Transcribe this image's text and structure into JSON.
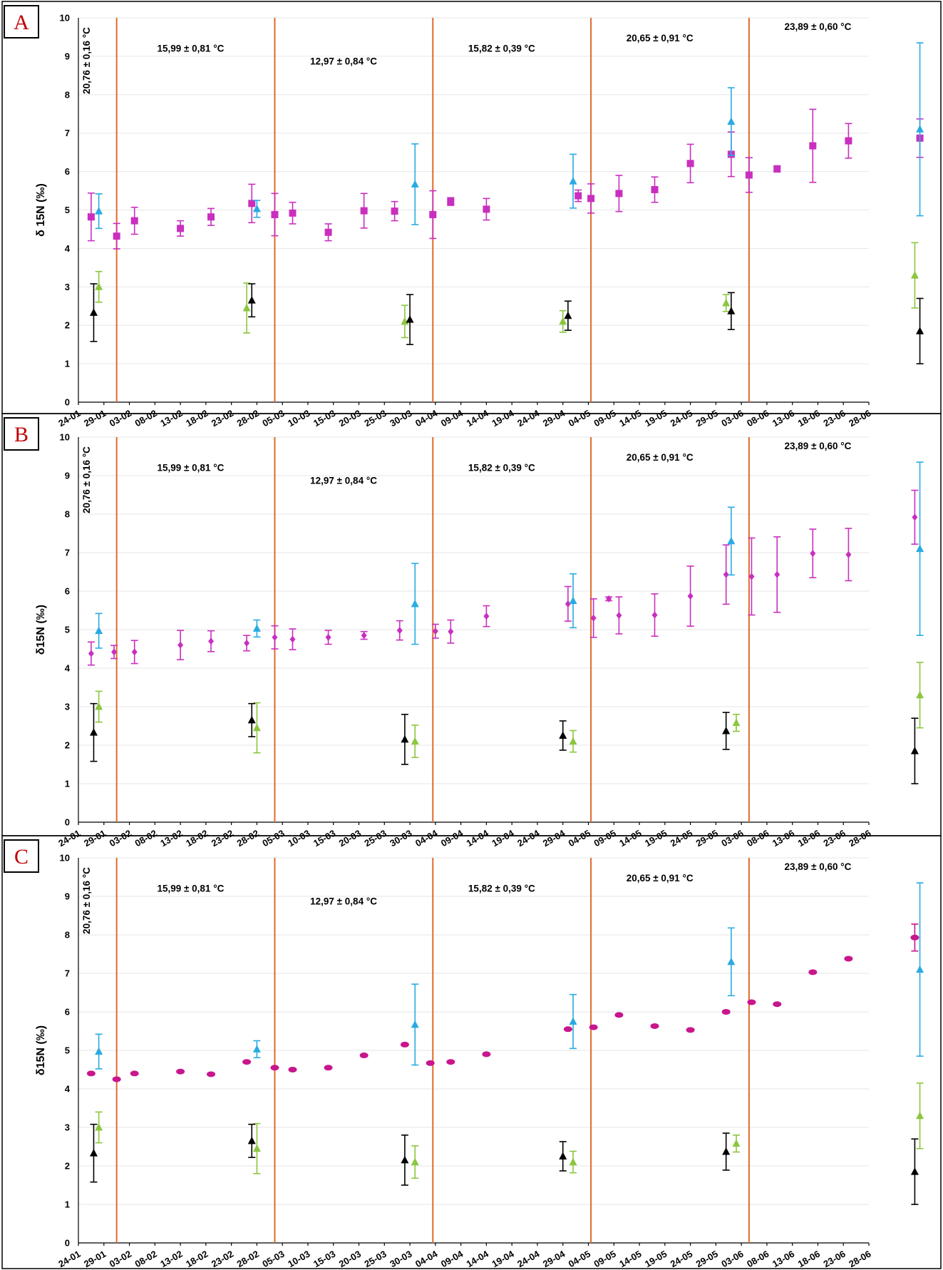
{
  "colors": {
    "magenta": "#c92fbf",
    "blue": "#29abe2",
    "green": "#8cc63f",
    "black": "#000000",
    "period_line": "#e06a2c"
  },
  "chart_data": [
    {
      "type": "scatter",
      "panel_label": "A",
      "ylabel": "δ 15N (‰)",
      "ylim": [
        0,
        10
      ],
      "yticks": [
        "0",
        "1",
        "2",
        "3",
        "4",
        "5",
        "6",
        "7",
        "8",
        "9",
        "10"
      ],
      "x_tick_labels": [
        "24-01",
        "29-01",
        "03-02",
        "08-02",
        "13-02",
        "18-02",
        "23-02",
        "28-02",
        "05-03",
        "10-03",
        "15-03",
        "20-03",
        "25-03",
        "30-03",
        "04-04",
        "09-04",
        "14-04",
        "19-04",
        "24-04",
        "29-04",
        "04-05",
        "09-05",
        "14-05",
        "19-05",
        "24-05",
        "29-05",
        "03-06",
        "08-06",
        "13-06",
        "18-06",
        "23-06",
        "28-06"
      ],
      "period_boundaries_day": [
        7.5,
        38.5,
        69.5,
        100.5,
        131.5
      ],
      "annotations": [
        "20,76 ± 0,16 °C",
        "15,99 ± 0,81 °C",
        "12,97 ± 0,84 °C",
        "15,82 ± 0,39 °C",
        "20,65 ± 0,91 °C",
        "23,89 ± 0,60 °C"
      ],
      "series": [
        {
          "marker": "square",
          "color": "#c92fbf",
          "points": [
            {
              "day": 2.5,
              "y": 4.82,
              "err": 0.62
            },
            {
              "day": 7.5,
              "y": 4.32,
              "err": 0.33
            },
            {
              "day": 11,
              "y": 4.72,
              "err": 0.35
            },
            {
              "day": 20,
              "y": 4.52,
              "err": 0.2
            },
            {
              "day": 26,
              "y": 4.82,
              "err": 0.22
            },
            {
              "day": 34,
              "y": 5.17,
              "err": 0.5
            },
            {
              "day": 38.5,
              "y": 4.88,
              "err": 0.55
            },
            {
              "day": 42,
              "y": 4.92,
              "err": 0.28
            },
            {
              "day": 49,
              "y": 4.42,
              "err": 0.22
            },
            {
              "day": 56,
              "y": 4.98,
              "err": 0.45
            },
            {
              "day": 62,
              "y": 4.97,
              "err": 0.25
            },
            {
              "day": 69.5,
              "y": 4.88,
              "err": 0.62
            },
            {
              "day": 73,
              "y": 5.22,
              "err": 0.1
            },
            {
              "day": 80,
              "y": 5.02,
              "err": 0.28
            },
            {
              "day": 98,
              "y": 5.37,
              "err": 0.15
            },
            {
              "day": 100.5,
              "y": 5.3,
              "err": 0.38
            },
            {
              "day": 106,
              "y": 5.43,
              "err": 0.47
            },
            {
              "day": 113,
              "y": 5.53,
              "err": 0.33
            },
            {
              "day": 120,
              "y": 6.21,
              "err": 0.5
            },
            {
              "day": 128,
              "y": 6.45,
              "err": 0.58
            },
            {
              "day": 131.5,
              "y": 5.91,
              "err": 0.45
            },
            {
              "day": 137,
              "y": 6.07,
              "err": 0.08
            },
            {
              "day": 144,
              "y": 6.67,
              "err": 0.95
            },
            {
              "day": 151,
              "y": 6.8,
              "err": 0.45
            },
            {
              "day": 165,
              "y": 6.87,
              "err": 0.5
            }
          ]
        },
        {
          "marker": "triangle",
          "color": "#29abe2",
          "points": [
            {
              "day": 4,
              "y": 4.97,
              "err": 0.45
            },
            {
              "day": 35,
              "y": 5.03,
              "err": 0.22
            },
            {
              "day": 66,
              "y": 5.67,
              "err": 1.05
            },
            {
              "day": 97,
              "y": 5.75,
              "err": 0.7
            },
            {
              "day": 128,
              "y": 7.3,
              "err": 0.88
            },
            {
              "day": 165,
              "y": 7.1,
              "err": 2.25
            }
          ]
        },
        {
          "marker": "triangle",
          "color": "#8cc63f",
          "points": [
            {
              "day": 4,
              "y": 3.0,
              "err": 0.4
            },
            {
              "day": 33,
              "y": 2.45,
              "err": 0.65
            },
            {
              "day": 64,
              "y": 2.1,
              "err": 0.42
            },
            {
              "day": 95,
              "y": 2.1,
              "err": 0.28
            },
            {
              "day": 127,
              "y": 2.58,
              "err": 0.22
            },
            {
              "day": 164,
              "y": 3.3,
              "err": 0.85
            }
          ]
        },
        {
          "marker": "triangle",
          "color": "#000000",
          "points": [
            {
              "day": 3,
              "y": 2.33,
              "err": 0.75
            },
            {
              "day": 34,
              "y": 2.65,
              "err": 0.43
            },
            {
              "day": 65,
              "y": 2.15,
              "err": 0.65
            },
            {
              "day": 96,
              "y": 2.25,
              "err": 0.38
            },
            {
              "day": 128,
              "y": 2.37,
              "err": 0.48
            },
            {
              "day": 165,
              "y": 1.85,
              "err": 0.85
            }
          ]
        }
      ]
    },
    {
      "type": "scatter",
      "panel_label": "B",
      "ylabel": "δ15N (‰)",
      "ylim": [
        0,
        10
      ],
      "yticks": [
        "0",
        "1",
        "2",
        "3",
        "4",
        "5",
        "6",
        "7",
        "8",
        "9",
        "10"
      ],
      "x_tick_labels": [
        "24-01",
        "29-01",
        "03-02",
        "08-02",
        "13-02",
        "18-02",
        "23-02",
        "28-02",
        "05-03",
        "10-03",
        "15-03",
        "20-03",
        "25-03",
        "30-03",
        "04-04",
        "09-04",
        "14-04",
        "19-04",
        "24-04",
        "29-04",
        "04-05",
        "09-05",
        "14-05",
        "19-05",
        "24-05",
        "29-05",
        "03-06",
        "08-06",
        "13-06",
        "18-06",
        "23-06",
        "28-06"
      ],
      "period_boundaries_day": [
        7.5,
        38.5,
        69.5,
        100.5,
        131.5
      ],
      "annotations": [
        "20,76 ± 0,16 °C",
        "15,99 ± 0,81 °C",
        "12,97 ± 0,84 °C",
        "15,82 ± 0,39 °C",
        "20,65 ± 0,91 °C",
        "23,89 ± 0,60 °C"
      ],
      "series": [
        {
          "marker": "diamond",
          "color": "#c92fbf",
          "points": [
            {
              "day": 2.5,
              "y": 4.38,
              "err": 0.3
            },
            {
              "day": 7,
              "y": 4.42,
              "err": 0.17
            },
            {
              "day": 11,
              "y": 4.42,
              "err": 0.3
            },
            {
              "day": 20,
              "y": 4.6,
              "err": 0.38
            },
            {
              "day": 26,
              "y": 4.7,
              "err": 0.27
            },
            {
              "day": 33,
              "y": 4.65,
              "err": 0.2
            },
            {
              "day": 38.5,
              "y": 4.8,
              "err": 0.3
            },
            {
              "day": 42,
              "y": 4.75,
              "err": 0.27
            },
            {
              "day": 49,
              "y": 4.8,
              "err": 0.18
            },
            {
              "day": 56,
              "y": 4.85,
              "err": 0.1
            },
            {
              "day": 63,
              "y": 4.98,
              "err": 0.25
            },
            {
              "day": 70,
              "y": 4.96,
              "err": 0.18
            },
            {
              "day": 73,
              "y": 4.95,
              "err": 0.3
            },
            {
              "day": 80,
              "y": 5.35,
              "err": 0.27
            },
            {
              "day": 96,
              "y": 5.67,
              "err": 0.45
            },
            {
              "day": 101,
              "y": 5.3,
              "err": 0.5
            },
            {
              "day": 104,
              "y": 5.8,
              "err": 0.05
            },
            {
              "day": 106,
              "y": 5.37,
              "err": 0.48
            },
            {
              "day": 113,
              "y": 5.38,
              "err": 0.55
            },
            {
              "day": 120,
              "y": 5.87,
              "err": 0.78
            },
            {
              "day": 127,
              "y": 6.43,
              "err": 0.77
            },
            {
              "day": 132,
              "y": 6.38,
              "err": 1.0
            },
            {
              "day": 137,
              "y": 6.43,
              "err": 0.98
            },
            {
              "day": 144,
              "y": 6.98,
              "err": 0.63
            },
            {
              "day": 151,
              "y": 6.95,
              "err": 0.68
            },
            {
              "day": 164,
              "y": 7.92,
              "err": 0.7
            }
          ]
        },
        {
          "marker": "triangle",
          "color": "#29abe2",
          "points": [
            {
              "day": 4,
              "y": 4.97,
              "err": 0.45
            },
            {
              "day": 35,
              "y": 5.03,
              "err": 0.22
            },
            {
              "day": 66,
              "y": 5.67,
              "err": 1.05
            },
            {
              "day": 97,
              "y": 5.75,
              "err": 0.7
            },
            {
              "day": 128,
              "y": 7.3,
              "err": 0.88
            },
            {
              "day": 165,
              "y": 7.1,
              "err": 2.25
            }
          ]
        },
        {
          "marker": "triangle",
          "color": "#8cc63f",
          "points": [
            {
              "day": 4,
              "y": 3.0,
              "err": 0.4
            },
            {
              "day": 35,
              "y": 2.45,
              "err": 0.65
            },
            {
              "day": 66,
              "y": 2.1,
              "err": 0.42
            },
            {
              "day": 97,
              "y": 2.1,
              "err": 0.28
            },
            {
              "day": 129,
              "y": 2.58,
              "err": 0.22
            },
            {
              "day": 165,
              "y": 3.3,
              "err": 0.85
            }
          ]
        },
        {
          "marker": "triangle",
          "color": "#000000",
          "points": [
            {
              "day": 3,
              "y": 2.33,
              "err": 0.75
            },
            {
              "day": 34,
              "y": 2.65,
              "err": 0.43
            },
            {
              "day": 64,
              "y": 2.15,
              "err": 0.65
            },
            {
              "day": 95,
              "y": 2.25,
              "err": 0.38
            },
            {
              "day": 127,
              "y": 2.37,
              "err": 0.48
            },
            {
              "day": 164,
              "y": 1.85,
              "err": 0.85
            }
          ]
        }
      ]
    },
    {
      "type": "scatter",
      "panel_label": "C",
      "ylabel": "δ15N (‰)",
      "ylim": [
        0,
        10
      ],
      "yticks": [
        "0",
        "1",
        "2",
        "3",
        "4",
        "5",
        "6",
        "7",
        "8",
        "9",
        "10"
      ],
      "x_tick_labels": [
        "24-01",
        "29-01",
        "03-02",
        "08-02",
        "13-02",
        "18-02",
        "23-02",
        "28-02",
        "05-03",
        "10-03",
        "15-03",
        "20-03",
        "25-03",
        "30-03",
        "04-04",
        "09-04",
        "14-04",
        "19-04",
        "24-04",
        "29-04",
        "04-05",
        "09-05",
        "14-05",
        "19-05",
        "24-05",
        "29-05",
        "03-06",
        "08-06",
        "13-06",
        "18-06",
        "23-06",
        "28-06"
      ],
      "period_boundaries_day": [
        7.5,
        38.5,
        69.5,
        100.5,
        131.5
      ],
      "annotations": [
        "20,76 ± 0,16 °C",
        "15,99 ± 0,81 °C",
        "12,97 ± 0,84 °C",
        "15,82 ± 0,39 °C",
        "20,65 ± 0,91 °C",
        "23,89 ± 0,60 °C"
      ],
      "series": [
        {
          "marker": "ellipse",
          "color": "#c8168c",
          "points": [
            {
              "day": 2.5,
              "y": 4.4,
              "err": 0
            },
            {
              "day": 7.5,
              "y": 4.25,
              "err": 0
            },
            {
              "day": 11,
              "y": 4.4,
              "err": 0
            },
            {
              "day": 20,
              "y": 4.45,
              "err": 0
            },
            {
              "day": 26,
              "y": 4.38,
              "err": 0
            },
            {
              "day": 33,
              "y": 4.7,
              "err": 0
            },
            {
              "day": 38.5,
              "y": 4.55,
              "err": 0
            },
            {
              "day": 42,
              "y": 4.5,
              "err": 0
            },
            {
              "day": 49,
              "y": 4.55,
              "err": 0
            },
            {
              "day": 56,
              "y": 4.87,
              "err": 0
            },
            {
              "day": 64,
              "y": 5.15,
              "err": 0
            },
            {
              "day": 69,
              "y": 4.67,
              "err": 0
            },
            {
              "day": 73,
              "y": 4.7,
              "err": 0
            },
            {
              "day": 80,
              "y": 4.9,
              "err": 0
            },
            {
              "day": 96,
              "y": 5.55,
              "err": 0
            },
            {
              "day": 101,
              "y": 5.6,
              "err": 0
            },
            {
              "day": 106,
              "y": 5.92,
              "err": 0
            },
            {
              "day": 113,
              "y": 5.63,
              "err": 0
            },
            {
              "day": 120,
              "y": 5.53,
              "err": 0
            },
            {
              "day": 127,
              "y": 6.0,
              "err": 0
            },
            {
              "day": 132,
              "y": 6.25,
              "err": 0
            },
            {
              "day": 137,
              "y": 6.2,
              "err": 0
            },
            {
              "day": 144,
              "y": 7.03,
              "err": 0
            },
            {
              "day": 151,
              "y": 7.38,
              "err": 0
            },
            {
              "day": 164,
              "y": 7.93,
              "err": 0.35
            }
          ]
        },
        {
          "marker": "triangle",
          "color": "#29abe2",
          "points": [
            {
              "day": 4,
              "y": 4.97,
              "err": 0.45
            },
            {
              "day": 35,
              "y": 5.03,
              "err": 0.22
            },
            {
              "day": 66,
              "y": 5.67,
              "err": 1.05
            },
            {
              "day": 97,
              "y": 5.75,
              "err": 0.7
            },
            {
              "day": 128,
              "y": 7.3,
              "err": 0.88
            },
            {
              "day": 165,
              "y": 7.1,
              "err": 2.25
            }
          ]
        },
        {
          "marker": "triangle",
          "color": "#8cc63f",
          "points": [
            {
              "day": 4,
              "y": 3.0,
              "err": 0.4
            },
            {
              "day": 35,
              "y": 2.45,
              "err": 0.65
            },
            {
              "day": 66,
              "y": 2.1,
              "err": 0.42
            },
            {
              "day": 97,
              "y": 2.1,
              "err": 0.28
            },
            {
              "day": 129,
              "y": 2.58,
              "err": 0.22
            },
            {
              "day": 165,
              "y": 3.3,
              "err": 0.85
            }
          ]
        },
        {
          "marker": "triangle",
          "color": "#000000",
          "points": [
            {
              "day": 3,
              "y": 2.33,
              "err": 0.75
            },
            {
              "day": 34,
              "y": 2.65,
              "err": 0.43
            },
            {
              "day": 64,
              "y": 2.15,
              "err": 0.65
            },
            {
              "day": 95,
              "y": 2.25,
              "err": 0.38
            },
            {
              "day": 127,
              "y": 2.37,
              "err": 0.48
            },
            {
              "day": 164,
              "y": 1.85,
              "err": 0.85
            }
          ]
        }
      ]
    }
  ]
}
